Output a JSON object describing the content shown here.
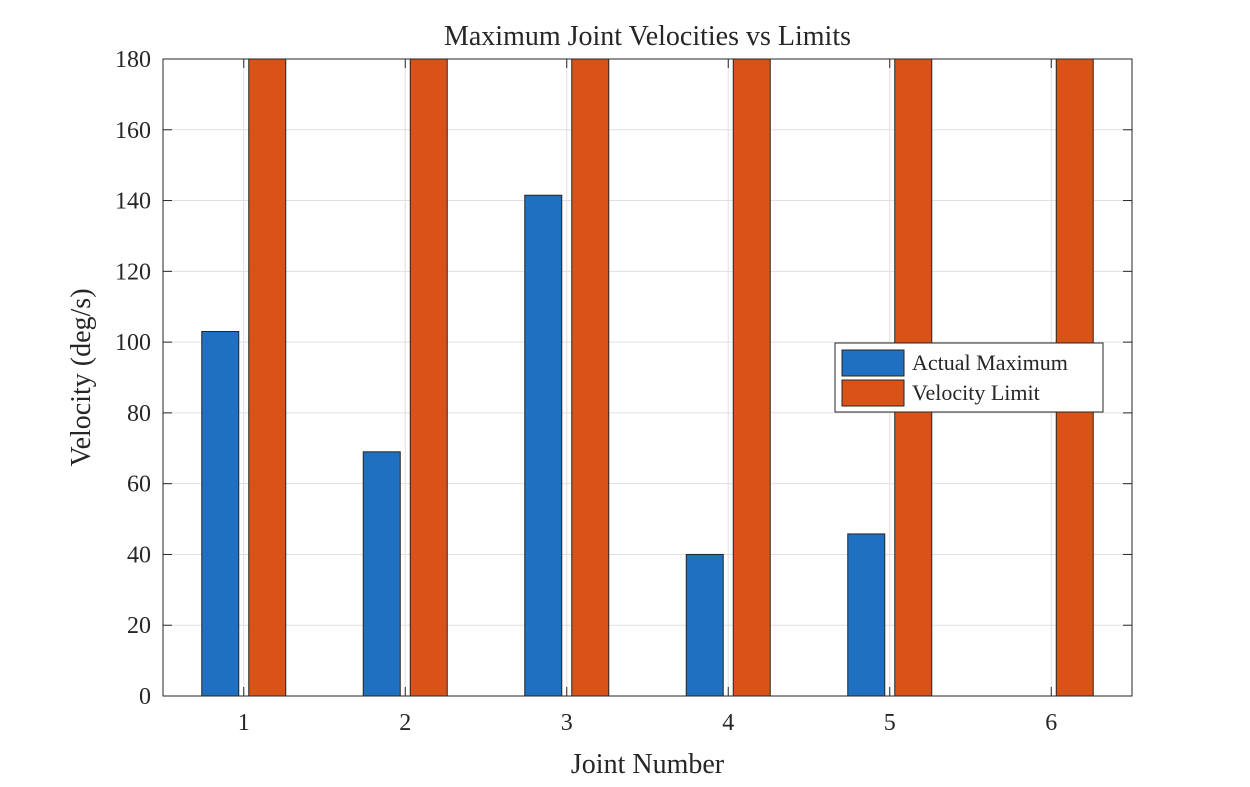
{
  "chart_data": {
    "type": "bar",
    "title": "Maximum Joint Velocities vs Limits",
    "xlabel": "Joint Number",
    "ylabel": "Velocity (deg/s)",
    "categories": [
      "1",
      "2",
      "3",
      "4",
      "5",
      "6"
    ],
    "ylim": [
      0,
      180
    ],
    "yticks": [
      0,
      20,
      40,
      60,
      80,
      100,
      120,
      140,
      160,
      180
    ],
    "grid": true,
    "legend_position": "right",
    "series": [
      {
        "name": "Actual Maximum",
        "color": "#1f70c0",
        "values": [
          103,
          69,
          141.5,
          40,
          45.8,
          0
        ]
      },
      {
        "name": "Velocity Limit",
        "color": "#d95319",
        "values": [
          180,
          180,
          180,
          180,
          180,
          180
        ]
      }
    ]
  }
}
